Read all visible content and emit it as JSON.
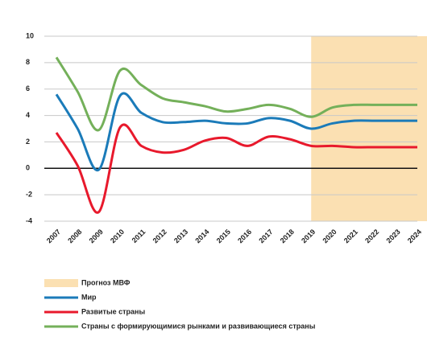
{
  "chart_data": {
    "type": "line",
    "categories": [
      "2007",
      "2008",
      "2009",
      "2010",
      "2011",
      "2012",
      "2013",
      "2014",
      "2015",
      "2016",
      "2017",
      "2018",
      "2019",
      "2020",
      "2021",
      "2022",
      "2023",
      "2024"
    ],
    "series": [
      {
        "name": "Мир",
        "color": "#1b7bb9",
        "values": [
          5.6,
          3.0,
          -0.1,
          5.5,
          4.2,
          3.5,
          3.5,
          3.6,
          3.4,
          3.4,
          3.8,
          3.6,
          3.0,
          3.4,
          3.6,
          3.6,
          3.6,
          3.6
        ]
      },
      {
        "name": "Развитые страны",
        "color": "#e8192c",
        "values": [
          2.7,
          0.2,
          -3.3,
          3.1,
          1.7,
          1.2,
          1.4,
          2.1,
          2.3,
          1.7,
          2.4,
          2.2,
          1.7,
          1.7,
          1.6,
          1.6,
          1.6,
          1.6
        ]
      },
      {
        "name": "Страны с формирующимися рынками и развивающиеся страны",
        "color": "#74b05a",
        "values": [
          8.4,
          5.8,
          2.9,
          7.4,
          6.3,
          5.3,
          5.0,
          4.7,
          4.3,
          4.5,
          4.8,
          4.5,
          3.9,
          4.6,
          4.8,
          4.8,
          4.8,
          4.8
        ]
      }
    ],
    "forecast": {
      "label": "Прогноз МВФ",
      "from": "2019",
      "color": "#fbe0b2"
    },
    "ylim": [
      -4,
      10
    ],
    "yticks": [
      -4,
      -2,
      0,
      2,
      4,
      6,
      8,
      10
    ],
    "grid": true
  }
}
